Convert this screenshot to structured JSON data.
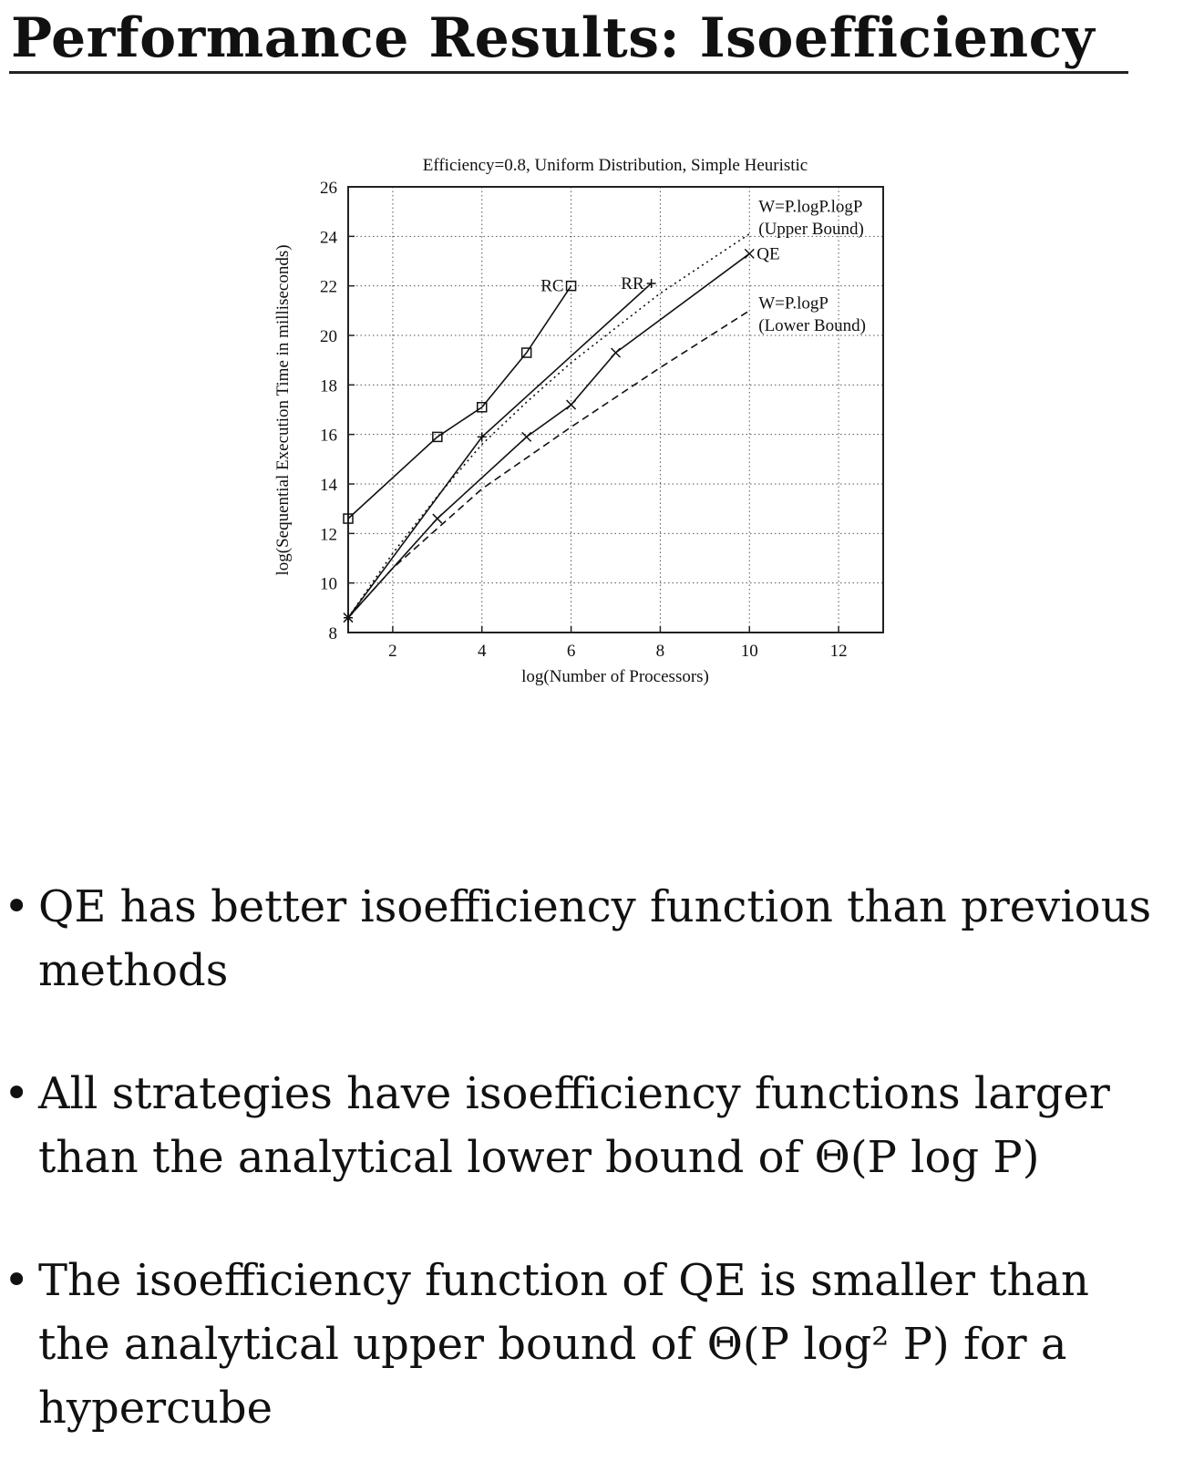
{
  "slide": {
    "title": "Performance Results: Isoefficiency"
  },
  "chart_data": {
    "type": "line",
    "title": "Efficiency=0.8, Uniform Distribution, Simple Heuristic",
    "xlabel": "log(Number of Processors)",
    "ylabel": "log(Sequential Execution Time in milliseconds)",
    "xlim": [
      1,
      13
    ],
    "ylim": [
      8,
      26
    ],
    "xticks": [
      2,
      4,
      6,
      8,
      10,
      12
    ],
    "yticks": [
      8,
      10,
      12,
      14,
      16,
      18,
      20,
      22,
      24,
      26
    ],
    "grid": true,
    "series": [
      {
        "name": "RC",
        "marker": "square",
        "dash": "solid",
        "x": [
          1,
          3,
          4,
          5,
          6
        ],
        "y": [
          12.6,
          15.9,
          17.1,
          19.3,
          22.0
        ]
      },
      {
        "name": "RR",
        "marker": "plus",
        "dash": "solid",
        "x": [
          1,
          4,
          7.8
        ],
        "y": [
          8.6,
          15.9,
          22.1
        ]
      },
      {
        "name": "QE",
        "marker": "x",
        "dash": "solid",
        "x": [
          1,
          3,
          5,
          6,
          7,
          10
        ],
        "y": [
          8.6,
          12.6,
          15.9,
          17.2,
          19.3,
          23.3
        ]
      },
      {
        "name": "W=P.logP.logP (Upper Bound)",
        "marker": "none",
        "dash": "dotted",
        "x": [
          1,
          2,
          3,
          4,
          5,
          6,
          7,
          8,
          9,
          10
        ],
        "y": [
          8.6,
          11.2,
          13.5,
          15.6,
          17.3,
          18.9,
          20.3,
          21.7,
          22.9,
          24.1
        ]
      },
      {
        "name": "W=P.logP (Lower Bound)",
        "marker": "none",
        "dash": "dashed",
        "x": [
          1,
          2,
          4,
          6,
          8,
          10
        ],
        "y": [
          8.6,
          10.6,
          13.8,
          16.3,
          18.7,
          21.0
        ]
      }
    ],
    "annotations": [
      {
        "text": "RC",
        "x": 6,
        "y": 22.0
      },
      {
        "text": "RR",
        "x": 7.8,
        "y": 22.1
      },
      {
        "text": "QE",
        "x": 10,
        "y": 23.3
      },
      {
        "text": "W=P.logP.logP",
        "x": 10,
        "y": 25.2
      },
      {
        "text": "(Upper Bound)",
        "x": 10,
        "y": 24.3
      },
      {
        "text": "W=P.logP",
        "x": 10,
        "y": 21.3
      },
      {
        "text": "(Lower Bound)",
        "x": 10,
        "y": 20.4
      }
    ]
  },
  "bullets": [
    {
      "lines": [
        "QE has better isoefficiency function than previous",
        "methods"
      ]
    },
    {
      "lines": [
        "All strategies have isoefficiency functions larger",
        "than the analytical lower bound of Θ(P log P)"
      ]
    },
    {
      "lines": [
        "The isoefficiency function of QE is smaller than",
        "the analytical upper bound of Θ(P log² P) for a",
        "hypercube"
      ]
    }
  ]
}
